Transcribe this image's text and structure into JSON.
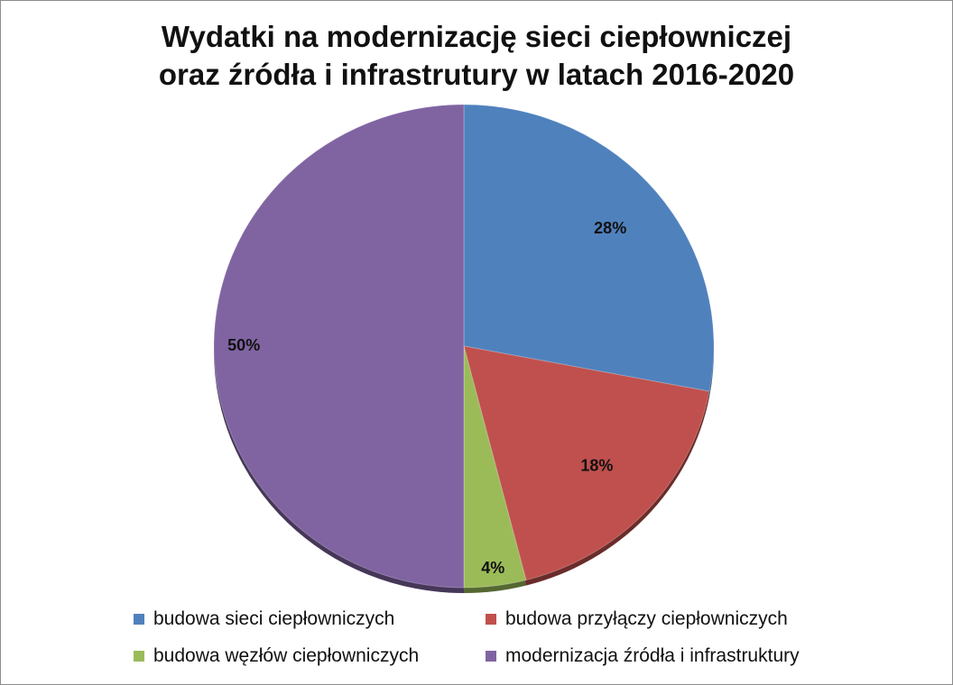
{
  "chart_data": {
    "type": "pie",
    "title_lines": [
      "Wydatki na modernizację sieci ciepłowniczej",
      "oraz źródła i infrastrutury w latach 2016-2020"
    ],
    "slices": [
      {
        "label": "budowa sieci ciepłowniczych",
        "value": 28,
        "display": "28%",
        "color": "#4F81BD"
      },
      {
        "label": "budowa przyłączy ciepłowniczych",
        "value": 18,
        "display": "18%",
        "color": "#C0504D"
      },
      {
        "label": "budowa węzłów ciepłowniczych",
        "value": 4,
        "display": "4%",
        "color": "#9BBB59"
      },
      {
        "label": "modernizacja źródła i infrastruktury",
        "value": 50,
        "display": "50%",
        "color": "#8064A2"
      }
    ],
    "legend_position": "bottom"
  }
}
